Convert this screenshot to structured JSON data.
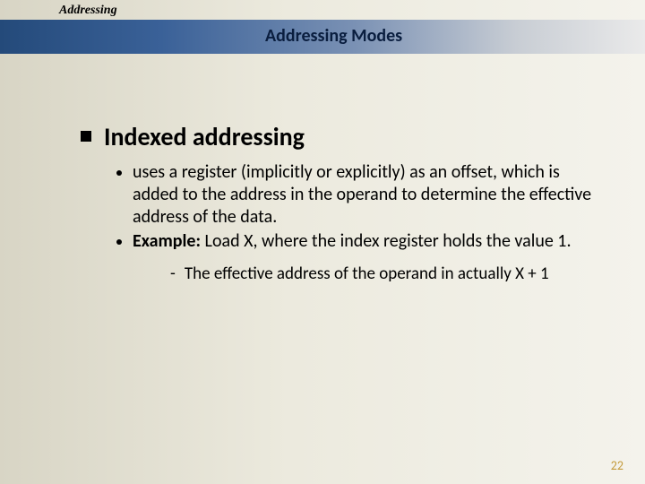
{
  "colors": {
    "background_gradient_left": "#d8d5c5",
    "background_gradient_right": "#f4f3ec",
    "titlebar_gradient_left": "#244a7a",
    "titlebar_gradient_right": "#eaeaea",
    "title_text": "#0a1e3f",
    "body_text": "#000000",
    "page_number": "#c49a3a"
  },
  "topic_label": "Addressing",
  "title": "Addressing Modes",
  "heading": "Indexed addressing",
  "bullets": [
    {
      "text": "uses a register (implicitly or explicitly) as an offset, which is added to the address in the operand to determine the effective address of the data."
    },
    {
      "label": "Example:",
      "text": " Load X, where the index register holds the value 1."
    }
  ],
  "subbullet": "The effective address of the operand in actually X + 1",
  "page_number": "22",
  "fonts": {
    "topic_label_size_pt": 14,
    "title_size_pt": 20,
    "heading_size_pt": 28,
    "body_size_pt": 20,
    "subsub_size_pt": 19,
    "pagenum_size_pt": 14
  }
}
